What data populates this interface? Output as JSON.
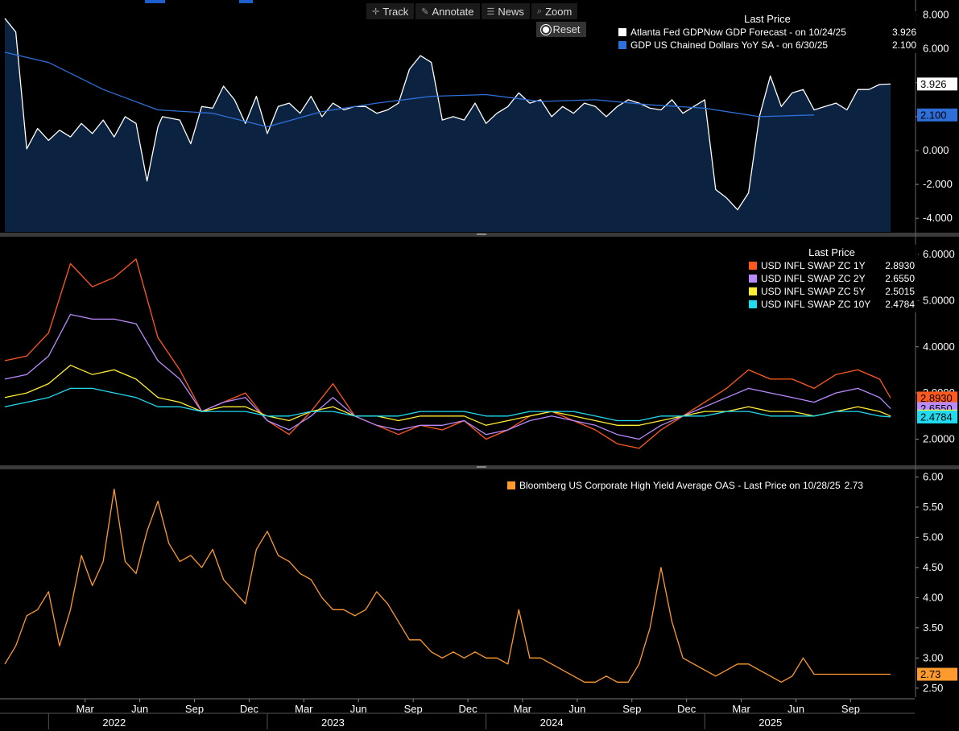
{
  "toolbar": {
    "track": "Track",
    "annotate": "Annotate",
    "news": "News",
    "zoom": "Zoom",
    "reset": "Reset"
  },
  "chart_data": [
    {
      "type": "area",
      "panel": "gdp",
      "legend_title": "Last Price",
      "ylim": [
        -4.8,
        8.6
      ],
      "yticks": [
        "8.000",
        "6.000",
        "4.000",
        "2.000",
        "0.000",
        "-2.000",
        "-4.000"
      ],
      "ytick_values": [
        8,
        6,
        4,
        2,
        0,
        -2,
        -4
      ],
      "series": [
        {
          "name": "Atlanta Fed GDPNow GDP Forecast -  on 10/24/25",
          "last": "3.926",
          "color": "#ffffff",
          "fill": "#0b2340",
          "x": [
            2021.8,
            2021.85,
            2021.9,
            2021.95,
            2022.0,
            2022.05,
            2022.1,
            2022.15,
            2022.2,
            2022.25,
            2022.3,
            2022.35,
            2022.4,
            2022.45,
            2022.5,
            2022.52,
            2022.6,
            2022.65,
            2022.7,
            2022.75,
            2022.8,
            2022.85,
            2022.9,
            2022.95,
            2023.0,
            2023.05,
            2023.1,
            2023.15,
            2023.2,
            2023.25,
            2023.3,
            2023.35,
            2023.4,
            2023.45,
            2023.5,
            2023.55,
            2023.6,
            2023.65,
            2023.7,
            2023.75,
            2023.8,
            2023.85,
            2023.9,
            2023.95,
            2024.0,
            2024.05,
            2024.1,
            2024.15,
            2024.2,
            2024.25,
            2024.3,
            2024.35,
            2024.4,
            2024.45,
            2024.5,
            2024.55,
            2024.6,
            2024.65,
            2024.7,
            2024.75,
            2024.8,
            2024.85,
            2024.9,
            2024.95,
            2025.0,
            2025.05,
            2025.1,
            2025.15,
            2025.2,
            2025.25,
            2025.3,
            2025.35,
            2025.4,
            2025.45,
            2025.5,
            2025.55,
            2025.6,
            2025.65,
            2025.7,
            2025.75,
            2025.8,
            2025.85
          ],
          "y": [
            7.8,
            7.0,
            0.1,
            1.3,
            0.6,
            1.2,
            0.8,
            1.6,
            1.0,
            1.8,
            0.8,
            2.0,
            1.6,
            -1.8,
            1.4,
            2.0,
            1.8,
            0.4,
            2.6,
            2.5,
            3.8,
            3.0,
            1.6,
            3.2,
            1.0,
            2.6,
            2.8,
            2.2,
            3.2,
            2.0,
            2.8,
            2.4,
            2.6,
            2.6,
            2.2,
            2.4,
            2.8,
            4.8,
            5.6,
            5.2,
            1.8,
            2.0,
            1.8,
            2.8,
            1.6,
            2.2,
            2.6,
            3.4,
            2.8,
            3.0,
            2.0,
            2.6,
            2.2,
            2.8,
            2.6,
            2.0,
            2.6,
            3.0,
            2.8,
            2.5,
            2.4,
            3.0,
            2.2,
            2.6,
            3.0,
            -2.3,
            -2.8,
            -3.5,
            -2.5,
            2.0,
            4.4,
            2.6,
            3.4,
            3.6,
            2.4,
            2.6,
            2.8,
            2.4,
            3.6,
            3.6,
            3.9,
            3.926
          ]
        },
        {
          "name": "GDP US Chained Dollars YoY SA -  on 6/30/25",
          "last": "2.100",
          "color": "#2e6fd9",
          "x": [
            2021.8,
            2022.0,
            2022.25,
            2022.5,
            2022.75,
            2023.0,
            2023.25,
            2023.5,
            2023.75,
            2024.0,
            2024.25,
            2024.5,
            2024.75,
            2025.0,
            2025.25,
            2025.5
          ],
          "y": [
            5.8,
            5.2,
            3.6,
            2.4,
            2.2,
            1.4,
            2.3,
            2.8,
            3.2,
            3.3,
            2.9,
            3.0,
            2.7,
            2.5,
            2.0,
            2.1
          ]
        }
      ]
    },
    {
      "type": "line",
      "panel": "inflation-swaps",
      "legend_title": "Last Price",
      "ylim": [
        1.45,
        6.35
      ],
      "yticks": [
        "6.0000",
        "5.0000",
        "4.0000",
        "3.0000",
        "2.0000"
      ],
      "ytick_values": [
        6,
        5,
        4,
        3,
        2
      ],
      "series": [
        {
          "name": "USD INFL SWAP ZC 1Y",
          "last": "2.8930",
          "color": "#ff5a1e",
          "x": [
            2021.8,
            2021.9,
            2022.0,
            2022.1,
            2022.2,
            2022.3,
            2022.4,
            2022.5,
            2022.6,
            2022.7,
            2022.8,
            2022.9,
            2023.0,
            2023.1,
            2023.2,
            2023.3,
            2023.4,
            2023.5,
            2023.6,
            2023.7,
            2023.8,
            2023.9,
            2024.0,
            2024.1,
            2024.2,
            2024.3,
            2024.4,
            2024.5,
            2024.6,
            2024.7,
            2024.8,
            2024.9,
            2025.0,
            2025.1,
            2025.2,
            2025.3,
            2025.4,
            2025.5,
            2025.6,
            2025.7,
            2025.8,
            2025.85
          ],
          "y": [
            3.7,
            3.8,
            4.3,
            5.8,
            5.3,
            5.5,
            5.9,
            4.2,
            3.5,
            2.6,
            2.8,
            3.0,
            2.4,
            2.1,
            2.6,
            3.2,
            2.5,
            2.3,
            2.1,
            2.3,
            2.2,
            2.4,
            2.0,
            2.2,
            2.5,
            2.6,
            2.4,
            2.2,
            1.9,
            1.8,
            2.2,
            2.5,
            2.8,
            3.1,
            3.5,
            3.3,
            3.3,
            3.1,
            3.4,
            3.5,
            3.3,
            2.89
          ]
        },
        {
          "name": "USD INFL SWAP ZC 2Y",
          "last": "2.6550",
          "color": "#b98bff",
          "x": [
            2021.8,
            2021.9,
            2022.0,
            2022.1,
            2022.2,
            2022.3,
            2022.4,
            2022.5,
            2022.6,
            2022.7,
            2022.8,
            2022.9,
            2023.0,
            2023.1,
            2023.2,
            2023.3,
            2023.4,
            2023.5,
            2023.6,
            2023.7,
            2023.8,
            2023.9,
            2024.0,
            2024.1,
            2024.2,
            2024.3,
            2024.4,
            2024.5,
            2024.6,
            2024.7,
            2024.8,
            2024.9,
            2025.0,
            2025.1,
            2025.2,
            2025.3,
            2025.4,
            2025.5,
            2025.6,
            2025.7,
            2025.8,
            2025.85
          ],
          "y": [
            3.3,
            3.4,
            3.8,
            4.7,
            4.6,
            4.6,
            4.5,
            3.7,
            3.3,
            2.6,
            2.8,
            2.9,
            2.4,
            2.2,
            2.5,
            2.9,
            2.5,
            2.3,
            2.2,
            2.3,
            2.3,
            2.4,
            2.1,
            2.2,
            2.4,
            2.5,
            2.4,
            2.3,
            2.1,
            2.0,
            2.3,
            2.5,
            2.7,
            2.9,
            3.1,
            3.0,
            2.9,
            2.8,
            3.0,
            3.1,
            2.9,
            2.66
          ]
        },
        {
          "name": "USD INFL SWAP ZC 5Y",
          "last": "2.5015",
          "color": "#ffee33",
          "x": [
            2021.8,
            2021.9,
            2022.0,
            2022.1,
            2022.2,
            2022.3,
            2022.4,
            2022.5,
            2022.6,
            2022.7,
            2022.8,
            2022.9,
            2023.0,
            2023.1,
            2023.2,
            2023.3,
            2023.4,
            2023.5,
            2023.6,
            2023.7,
            2023.8,
            2023.9,
            2024.0,
            2024.1,
            2024.2,
            2024.3,
            2024.4,
            2024.5,
            2024.6,
            2024.7,
            2024.8,
            2024.9,
            2025.0,
            2025.1,
            2025.2,
            2025.3,
            2025.4,
            2025.5,
            2025.6,
            2025.7,
            2025.8,
            2025.85
          ],
          "y": [
            2.9,
            3.0,
            3.2,
            3.6,
            3.4,
            3.5,
            3.3,
            2.9,
            2.8,
            2.6,
            2.7,
            2.7,
            2.5,
            2.4,
            2.6,
            2.7,
            2.5,
            2.5,
            2.4,
            2.5,
            2.5,
            2.5,
            2.3,
            2.4,
            2.5,
            2.6,
            2.5,
            2.4,
            2.3,
            2.3,
            2.4,
            2.5,
            2.6,
            2.6,
            2.7,
            2.6,
            2.6,
            2.5,
            2.6,
            2.7,
            2.6,
            2.5
          ]
        },
        {
          "name": "USD INFL SWAP ZC 10Y",
          "last": "2.4784",
          "color": "#1fdcf0",
          "x": [
            2021.8,
            2021.9,
            2022.0,
            2022.1,
            2022.2,
            2022.3,
            2022.4,
            2022.5,
            2022.6,
            2022.7,
            2022.8,
            2022.9,
            2023.0,
            2023.1,
            2023.2,
            2023.3,
            2023.4,
            2023.5,
            2023.6,
            2023.7,
            2023.8,
            2023.9,
            2024.0,
            2024.1,
            2024.2,
            2024.3,
            2024.4,
            2024.5,
            2024.6,
            2024.7,
            2024.8,
            2024.9,
            2025.0,
            2025.1,
            2025.2,
            2025.3,
            2025.4,
            2025.5,
            2025.6,
            2025.7,
            2025.8,
            2025.85
          ],
          "y": [
            2.7,
            2.8,
            2.9,
            3.1,
            3.1,
            3.0,
            2.9,
            2.7,
            2.7,
            2.6,
            2.6,
            2.6,
            2.5,
            2.5,
            2.6,
            2.6,
            2.5,
            2.5,
            2.5,
            2.6,
            2.6,
            2.6,
            2.5,
            2.5,
            2.6,
            2.6,
            2.6,
            2.5,
            2.4,
            2.4,
            2.5,
            2.5,
            2.5,
            2.6,
            2.6,
            2.5,
            2.5,
            2.5,
            2.6,
            2.6,
            2.5,
            2.48
          ]
        }
      ]
    },
    {
      "type": "line",
      "panel": "high-yield-oas",
      "ylim": [
        2.35,
        6.1
      ],
      "yticks": [
        "6.00",
        "5.50",
        "5.00",
        "4.50",
        "4.00",
        "3.50",
        "3.00",
        "2.50"
      ],
      "ytick_values": [
        6.0,
        5.5,
        5.0,
        4.5,
        4.0,
        3.5,
        3.0,
        2.5
      ],
      "series": [
        {
          "name": "Bloomberg US Corporate High Yield Average OAS - Last Price on 10/28/25",
          "last": "2.73",
          "color": "#ff9a2e",
          "x": [
            2021.8,
            2021.85,
            2021.9,
            2021.95,
            2022.0,
            2022.05,
            2022.1,
            2022.15,
            2022.2,
            2022.25,
            2022.3,
            2022.35,
            2022.4,
            2022.45,
            2022.5,
            2022.55,
            2022.6,
            2022.65,
            2022.7,
            2022.75,
            2022.8,
            2022.85,
            2022.9,
            2022.95,
            2023.0,
            2023.05,
            2023.1,
            2023.15,
            2023.2,
            2023.25,
            2023.3,
            2023.35,
            2023.4,
            2023.45,
            2023.5,
            2023.55,
            2023.6,
            2023.65,
            2023.7,
            2023.75,
            2023.8,
            2023.85,
            2023.9,
            2023.95,
            2024.0,
            2024.05,
            2024.1,
            2024.15,
            2024.2,
            2024.25,
            2024.3,
            2024.35,
            2024.4,
            2024.45,
            2024.5,
            2024.55,
            2024.6,
            2024.65,
            2024.7,
            2024.75,
            2024.8,
            2024.85,
            2024.9,
            2024.95,
            2025.0,
            2025.05,
            2025.1,
            2025.15,
            2025.2,
            2025.25,
            2025.3,
            2025.35,
            2025.4,
            2025.45,
            2025.5,
            2025.55,
            2025.6,
            2025.65,
            2025.7,
            2025.75,
            2025.8,
            2025.85
          ],
          "y": [
            2.9,
            3.2,
            3.7,
            3.8,
            4.1,
            3.2,
            3.8,
            4.7,
            4.2,
            4.6,
            5.8,
            4.6,
            4.4,
            5.1,
            5.6,
            4.9,
            4.6,
            4.7,
            4.5,
            4.8,
            4.3,
            4.1,
            3.9,
            4.8,
            5.1,
            4.7,
            4.6,
            4.4,
            4.3,
            4.0,
            3.8,
            3.8,
            3.7,
            3.8,
            4.1,
            3.9,
            3.6,
            3.3,
            3.3,
            3.1,
            3.0,
            3.1,
            3.0,
            3.1,
            3.0,
            3.0,
            2.9,
            3.8,
            3.0,
            3.0,
            2.9,
            2.8,
            2.7,
            2.6,
            2.6,
            2.7,
            2.6,
            2.6,
            2.9,
            3.5,
            4.5,
            3.6,
            3.0,
            2.9,
            2.8,
            2.7,
            2.8,
            2.9,
            2.9,
            2.8,
            2.7,
            2.6,
            2.7,
            3.0,
            2.73,
            2.73,
            2.73,
            2.73,
            2.73,
            2.73,
            2.73,
            2.73
          ]
        }
      ]
    }
  ],
  "x_axis": {
    "months": [
      "Mar",
      "Jun",
      "Sep",
      "Dec",
      "Mar",
      "Jun",
      "Sep",
      "Dec",
      "Mar",
      "Jun",
      "Sep",
      "Dec",
      "Mar",
      "Jun",
      "Sep"
    ],
    "month_values": [
      2022.167,
      2022.417,
      2022.667,
      2022.917,
      2023.167,
      2023.417,
      2023.667,
      2023.917,
      2024.167,
      2024.417,
      2024.667,
      2024.917,
      2025.167,
      2025.417,
      2025.667
    ],
    "years": [
      "2022",
      "2023",
      "2024",
      "2025"
    ],
    "year_values": [
      2022.3,
      2023.3,
      2024.3,
      2025.3
    ],
    "xlim": [
      2021.8,
      2025.96
    ]
  }
}
